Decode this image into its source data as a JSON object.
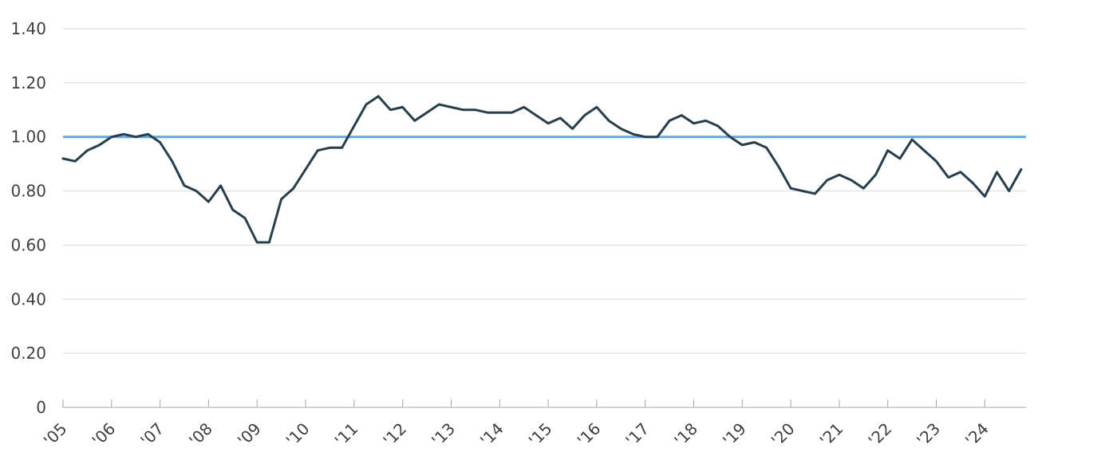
{
  "chart_data": {
    "type": "line",
    "title": "",
    "xlabel": "",
    "ylabel": "",
    "ylim": [
      0,
      1.4
    ],
    "grid": "horizontal",
    "legend": "none",
    "y_ticks": [
      {
        "value": 0,
        "label": "0"
      },
      {
        "value": 0.2,
        "label": "0.20"
      },
      {
        "value": 0.4,
        "label": "0.40"
      },
      {
        "value": 0.6,
        "label": "0.60"
      },
      {
        "value": 0.8,
        "label": "0.80"
      },
      {
        "value": 1.0,
        "label": "1.00"
      },
      {
        "value": 1.2,
        "label": "1.20"
      },
      {
        "value": 1.4,
        "label": "1.40"
      }
    ],
    "x_ticks": [
      {
        "value": 2005,
        "label": "'05"
      },
      {
        "value": 2006,
        "label": "'06"
      },
      {
        "value": 2007,
        "label": "'07"
      },
      {
        "value": 2008,
        "label": "'08"
      },
      {
        "value": 2009,
        "label": "'09"
      },
      {
        "value": 2010,
        "label": "'10"
      },
      {
        "value": 2011,
        "label": "'11"
      },
      {
        "value": 2012,
        "label": "'12"
      },
      {
        "value": 2013,
        "label": "'13"
      },
      {
        "value": 2014,
        "label": "'14"
      },
      {
        "value": 2015,
        "label": "'15"
      },
      {
        "value": 2016,
        "label": "'16"
      },
      {
        "value": 2017,
        "label": "'17"
      },
      {
        "value": 2018,
        "label": "'18"
      },
      {
        "value": 2019,
        "label": "'19"
      },
      {
        "value": 2020,
        "label": "'20"
      },
      {
        "value": 2021,
        "label": "'21"
      },
      {
        "value": 2022,
        "label": "'22"
      },
      {
        "value": 2023,
        "label": "'23"
      },
      {
        "value": 2024,
        "label": "'24"
      }
    ],
    "xlim": [
      2005,
      2024.85
    ],
    "reference_line": {
      "value": 1.0,
      "color": "#5aa7f2"
    },
    "series": [
      {
        "color": "#253f4d",
        "x": [
          2005.0,
          2005.25,
          2005.5,
          2005.75,
          2006.0,
          2006.25,
          2006.5,
          2006.75,
          2007.0,
          2007.25,
          2007.5,
          2007.75,
          2008.0,
          2008.25,
          2008.5,
          2008.75,
          2009.0,
          2009.25,
          2009.5,
          2009.75,
          2010.0,
          2010.25,
          2010.5,
          2010.75,
          2011.0,
          2011.25,
          2011.5,
          2011.75,
          2012.0,
          2012.25,
          2012.5,
          2012.75,
          2013.0,
          2013.25,
          2013.5,
          2013.75,
          2014.0,
          2014.25,
          2014.5,
          2014.75,
          2015.0,
          2015.25,
          2015.5,
          2015.75,
          2016.0,
          2016.25,
          2016.5,
          2016.75,
          2017.0,
          2017.25,
          2017.5,
          2017.75,
          2018.0,
          2018.25,
          2018.5,
          2018.75,
          2019.0,
          2019.25,
          2019.5,
          2019.75,
          2020.0,
          2020.25,
          2020.5,
          2020.75,
          2021.0,
          2021.25,
          2021.5,
          2021.75,
          2022.0,
          2022.25,
          2022.5,
          2022.75,
          2023.0,
          2023.25,
          2023.5,
          2023.75,
          2024.0,
          2024.25,
          2024.5,
          2024.75
        ],
        "y": [
          0.92,
          0.91,
          0.95,
          0.97,
          1.0,
          1.01,
          1.0,
          1.01,
          0.98,
          0.91,
          0.82,
          0.8,
          0.76,
          0.82,
          0.73,
          0.7,
          0.61,
          0.61,
          0.77,
          0.81,
          0.88,
          0.95,
          0.96,
          0.96,
          1.04,
          1.12,
          1.15,
          1.1,
          1.11,
          1.06,
          1.09,
          1.12,
          1.11,
          1.1,
          1.1,
          1.09,
          1.09,
          1.09,
          1.11,
          1.08,
          1.05,
          1.07,
          1.03,
          1.08,
          1.11,
          1.06,
          1.03,
          1.01,
          1.0,
          1.0,
          1.06,
          1.08,
          1.05,
          1.06,
          1.04,
          1.0,
          0.97,
          0.98,
          0.96,
          0.89,
          0.81,
          0.8,
          0.79,
          0.84,
          0.86,
          0.84,
          0.81,
          0.86,
          0.95,
          0.92,
          0.99,
          0.95,
          0.91,
          0.85,
          0.87,
          0.83,
          0.78,
          0.87,
          0.8,
          0.88
        ]
      }
    ]
  }
}
